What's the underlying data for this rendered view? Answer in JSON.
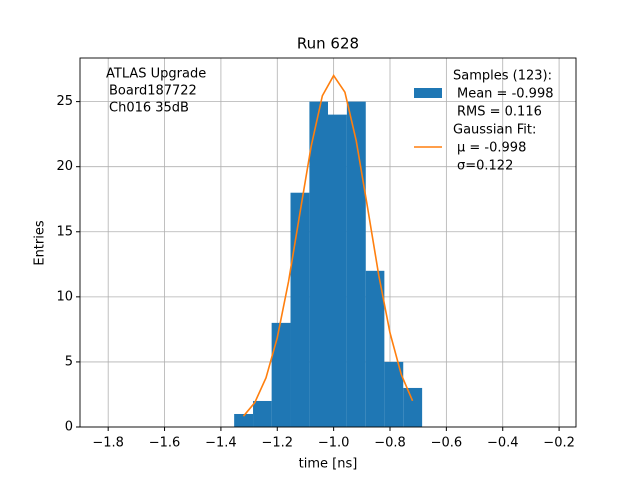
{
  "chart_data": {
    "type": "histogram",
    "title": "Run 628",
    "xlabel": "time [ns]",
    "ylabel": "Entries",
    "annotation": [
      "ATLAS Upgrade",
      "Board187722",
      "Ch016 35dB"
    ],
    "xlim": [
      -1.9,
      -0.14
    ],
    "ylim": [
      0,
      28.35
    ],
    "xticks": [
      {
        "value": -1.8,
        "label": "−1.8"
      },
      {
        "value": -1.6,
        "label": "−1.6"
      },
      {
        "value": -1.4,
        "label": "−1.4"
      },
      {
        "value": -1.2,
        "label": "−1.2"
      },
      {
        "value": -1.0,
        "label": "−1.0"
      },
      {
        "value": -0.8,
        "label": "−0.8"
      },
      {
        "value": -0.6,
        "label": "−0.6"
      },
      {
        "value": -0.4,
        "label": "−0.4"
      },
      {
        "value": -0.2,
        "label": "−0.2"
      }
    ],
    "yticks": [
      0,
      5,
      10,
      15,
      20,
      25
    ],
    "grid": true,
    "legend": "upper right",
    "series": [
      {
        "type": "histogram",
        "name": [
          "Samples (123):",
          "Mean = -0.998",
          "RMS = 0.116"
        ],
        "color": "#1f77b4",
        "bins": [
          -1.353,
          -1.286,
          -1.22,
          -1.153,
          -1.086,
          -1.02,
          -0.953,
          -0.886,
          -0.82,
          -0.753,
          -0.686
        ],
        "values": [
          1,
          2,
          8,
          18,
          25,
          24,
          25,
          12,
          5,
          3
        ]
      },
      {
        "type": "line",
        "name": [
          "Gaussian Fit:",
          "μ = -0.998",
          "σ=0.122"
        ],
        "color": "#ff7f0e",
        "x": [
          -1.32,
          -1.28,
          -1.24,
          -1.2,
          -1.16,
          -1.12,
          -1.08,
          -1.04,
          -1.0,
          -0.96,
          -0.92,
          -0.88,
          -0.84,
          -0.8,
          -0.76,
          -0.72
        ],
        "values": [
          0.83,
          1.87,
          3.78,
          6.86,
          11.18,
          16.38,
          21.54,
          25.45,
          27.0,
          25.72,
          22.01,
          16.91,
          11.67,
          7.23,
          4.03,
          2.01
        ]
      }
    ]
  }
}
